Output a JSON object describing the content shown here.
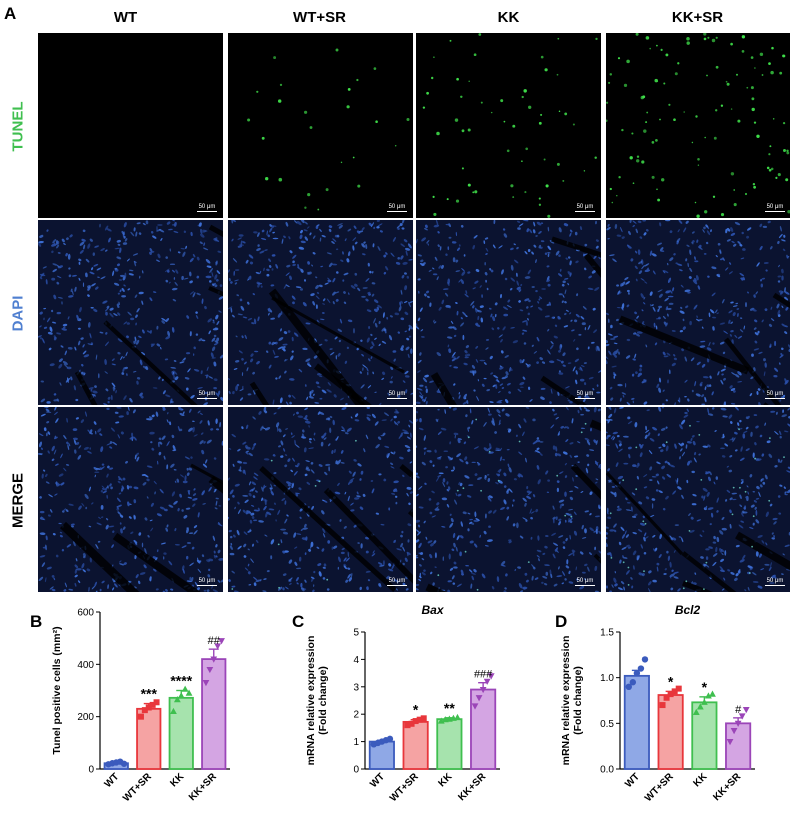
{
  "panel_a": {
    "letter": "A",
    "columns": [
      "WT",
      "WT+SR",
      "KK",
      "KK+SR"
    ],
    "rows": [
      {
        "label": "TUNEL",
        "color": "#3fbf4f",
        "stain": "tunel"
      },
      {
        "label": "DAPI",
        "color": "#4f7fd0",
        "stain": "dapi"
      },
      {
        "label": "MERGE",
        "color": "#111111",
        "stain": "merge"
      }
    ],
    "scale_bar_label": "50 μm",
    "tunel_density": [
      0.3,
      25,
      55,
      110
    ]
  },
  "chart_data": [
    {
      "letter": "B",
      "type": "bar",
      "title": "",
      "ylabel": "Tunel positive cells (mm²)",
      "xlabel": "",
      "ylim": [
        0,
        600
      ],
      "yticks": [
        0,
        200,
        400,
        600
      ],
      "categories": [
        "WT",
        "WT+SR",
        "KK",
        "KK+SR"
      ],
      "values": [
        22,
        230,
        272,
        420
      ],
      "errors": [
        4,
        20,
        28,
        38
      ],
      "points": [
        [
          18,
          22,
          25,
          28,
          20
        ],
        [
          200,
          225,
          235,
          245,
          255
        ],
        [
          220,
          265,
          280,
          305,
          290
        ],
        [
          330,
          380,
          420,
          470,
          490
        ]
      ],
      "significance": [
        "",
        "***",
        "****",
        "##"
      ],
      "colors": [
        "#3b5bbd",
        "#e8363b",
        "#3fbf4f",
        "#9b45b8"
      ],
      "fills": [
        "#8fa8e6",
        "#f5a3a3",
        "#a6e3ad",
        "#d4a5e3"
      ],
      "markers": [
        "circle",
        "square",
        "triangle",
        "triangle-down"
      ]
    },
    {
      "letter": "C",
      "type": "bar",
      "title": "Bax",
      "ylabel": "mRNA relative expression (Fold change)",
      "xlabel": "",
      "ylim": [
        0,
        5
      ],
      "yticks": [
        0,
        1,
        2,
        3,
        4,
        5
      ],
      "categories": [
        "WT",
        "WT+SR",
        "KK",
        "KK+SR"
      ],
      "values": [
        1.0,
        1.72,
        1.82,
        2.9
      ],
      "errors": [
        0.05,
        0.08,
        0.05,
        0.25
      ],
      "points": [
        [
          0.9,
          0.95,
          1.0,
          1.05,
          1.1
        ],
        [
          1.6,
          1.65,
          1.75,
          1.8,
          1.85
        ],
        [
          1.75,
          1.8,
          1.82,
          1.85,
          1.88
        ],
        [
          2.3,
          2.6,
          2.9,
          3.2,
          3.4
        ]
      ],
      "significance": [
        "",
        "*",
        "**",
        "###"
      ],
      "colors": [
        "#3b5bbd",
        "#e8363b",
        "#3fbf4f",
        "#9b45b8"
      ],
      "fills": [
        "#8fa8e6",
        "#f5a3a3",
        "#a6e3ad",
        "#d4a5e3"
      ],
      "markers": [
        "circle",
        "square",
        "triangle",
        "triangle-down"
      ]
    },
    {
      "letter": "D",
      "type": "bar",
      "title": "Bcl2",
      "ylabel": "mRNA relative expression (Fold change)",
      "xlabel": "",
      "ylim": [
        0,
        1.5
      ],
      "yticks": [
        0.0,
        0.5,
        1.0,
        1.5
      ],
      "tick_format": 1,
      "categories": [
        "WT",
        "WT+SR",
        "KK",
        "KK+SR"
      ],
      "values": [
        1.02,
        0.81,
        0.73,
        0.5
      ],
      "errors": [
        0.06,
        0.04,
        0.06,
        0.06
      ],
      "points": [
        [
          0.9,
          0.95,
          1.05,
          1.1,
          1.2
        ],
        [
          0.7,
          0.78,
          0.82,
          0.85,
          0.88
        ],
        [
          0.62,
          0.68,
          0.73,
          0.8,
          0.82
        ],
        [
          0.3,
          0.42,
          0.5,
          0.58,
          0.65
        ]
      ],
      "significance": [
        "",
        "*",
        "*",
        "#"
      ],
      "colors": [
        "#3b5bbd",
        "#e8363b",
        "#3fbf4f",
        "#9b45b8"
      ],
      "fills": [
        "#8fa8e6",
        "#f5a3a3",
        "#a6e3ad",
        "#d4a5e3"
      ],
      "markers": [
        "circle",
        "square",
        "triangle",
        "triangle-down"
      ]
    }
  ]
}
